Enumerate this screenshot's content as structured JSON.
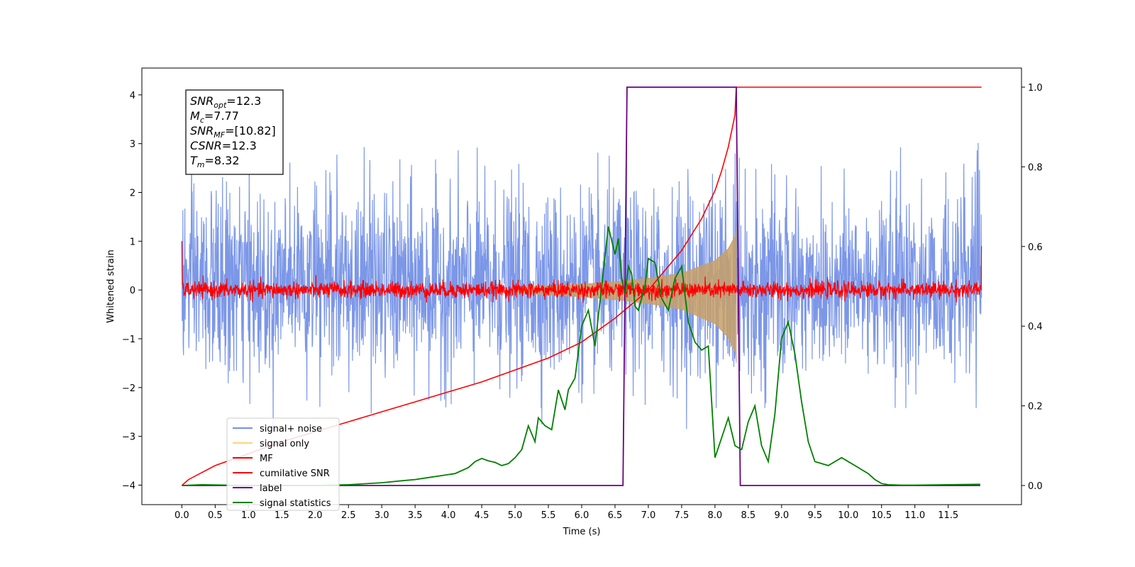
{
  "chart_data": {
    "type": "line",
    "xlabel": "Time (s)",
    "ylabel": "Whitened strain",
    "xlim": [
      -0.6,
      12.6
    ],
    "ylim": [
      -4.4,
      4.55
    ],
    "y2lim": [
      -0.048,
      1.048
    ],
    "x_ticks": [
      0.0,
      0.5,
      1.0,
      1.5,
      2.0,
      2.5,
      3.0,
      3.5,
      4.0,
      4.5,
      5.0,
      5.5,
      6.0,
      6.5,
      7.0,
      7.5,
      8.0,
      8.5,
      9.0,
      9.5,
      10.0,
      10.5,
      11.0,
      11.5
    ],
    "x_tick_labels": [
      "0.0",
      "0.5",
      "1.0",
      "1.5",
      "2.0",
      "2.5",
      "3.0",
      "3.5",
      "4.0",
      "4.5",
      "5.0",
      "5.5",
      "6.0",
      "6.5",
      "7.0",
      "7.5",
      "8.0",
      "8.5",
      "9.0",
      "9.5",
      "10.0",
      "10.5",
      "11.0",
      "11.5"
    ],
    "y_ticks": [
      -4,
      -3,
      -2,
      -1,
      0,
      1,
      2,
      3,
      4
    ],
    "y_tick_labels": [
      "−4",
      "−3",
      "−2",
      "−1",
      "0",
      "1",
      "2",
      "3",
      "4"
    ],
    "y2_ticks": [
      0.0,
      0.2,
      0.4,
      0.6,
      0.8,
      1.0
    ],
    "y2_tick_labels": [
      "0.0",
      "0.2",
      "0.4",
      "0.6",
      "0.8",
      "1.0"
    ],
    "annotation": {
      "lines": [
        {
          "main": "SNR",
          "sub": "opt",
          "rest": "=12.3"
        },
        {
          "main": "M",
          "sub": "c",
          "rest": "=7.77"
        },
        {
          "main": "SNR",
          "sub": "MF",
          "rest": "=[10.82]"
        },
        {
          "main": "CSNR",
          "sub": "",
          "rest": "=12.3"
        },
        {
          "main": "T",
          "sub": "m",
          "rest": "=8.32"
        }
      ]
    },
    "legend": {
      "placement": "lower-left",
      "entries": [
        {
          "label": "signal+ noise",
          "color": "#7591e6"
        },
        {
          "label": "signal only",
          "color": "#ffd37a"
        },
        {
          "label": "MF",
          "color": "#ff0000"
        },
        {
          "label": "cumilative SNR",
          "color": "#ff0000"
        },
        {
          "label": "label",
          "color": "#6a0080"
        },
        {
          "label": "signal statistics",
          "color": "#008000"
        }
      ]
    },
    "series": [
      {
        "name": "signal+ noise",
        "axis": "left",
        "color": "#7591e6",
        "kind": "noise",
        "t_start": 0.0,
        "t_end": 12.0,
        "n": 2400,
        "envelope": {
          "upper": [
            1.7,
            3.3
          ],
          "lower": [
            -1.6,
            -2.9
          ]
        }
      },
      {
        "name": "signal only",
        "axis": "left",
        "color": "#c8a066",
        "kind": "chirp_envelope",
        "t": [
          5.0,
          6.0,
          6.5,
          7.0,
          7.5,
          8.0,
          8.2,
          8.3,
          8.32
        ],
        "amp": [
          0.05,
          0.12,
          0.17,
          0.24,
          0.34,
          0.6,
          0.85,
          1.1,
          1.3
        ]
      },
      {
        "name": "MF",
        "axis": "left",
        "color": "#ff0000",
        "kind": "noise_small",
        "t_start": 0.0,
        "t_end": 12.0,
        "n": 2400,
        "amp": 0.12,
        "edges": [
          1.0,
          0.9
        ]
      },
      {
        "name": "cumilative SNR",
        "axis": "right",
        "x": [
          0.0,
          0.1,
          0.5,
          1.0,
          1.5,
          2.0,
          2.5,
          3.0,
          3.5,
          4.0,
          4.5,
          5.0,
          5.5,
          6.0,
          6.5,
          7.0,
          7.5,
          7.8,
          8.0,
          8.1,
          8.2,
          8.3,
          8.32,
          12.0
        ],
        "y": [
          0.0,
          0.015,
          0.05,
          0.08,
          0.11,
          0.135,
          0.16,
          0.185,
          0.21,
          0.235,
          0.26,
          0.29,
          0.32,
          0.36,
          0.42,
          0.49,
          0.59,
          0.67,
          0.74,
          0.79,
          0.85,
          0.93,
          1.0,
          1.0
        ]
      },
      {
        "name": "label",
        "axis": "right",
        "x": [
          0.0,
          6.62,
          6.68,
          8.32,
          8.38,
          11.98
        ],
        "y": [
          0.0,
          0.0,
          1.0,
          1.0,
          0.0,
          0.0
        ]
      },
      {
        "name": "signal statistics",
        "axis": "right",
        "x": [
          0.0,
          0.3,
          1.0,
          2.0,
          2.5,
          3.0,
          3.3,
          3.5,
          3.7,
          3.9,
          4.1,
          4.3,
          4.4,
          4.5,
          4.6,
          4.7,
          4.8,
          4.9,
          5.0,
          5.1,
          5.2,
          5.3,
          5.35,
          5.45,
          5.55,
          5.65,
          5.75,
          5.8,
          5.9,
          6.0,
          6.1,
          6.2,
          6.3,
          6.4,
          6.5,
          6.55,
          6.6,
          6.65,
          6.7,
          6.75,
          6.8,
          6.85,
          6.9,
          6.95,
          7.0,
          7.1,
          7.2,
          7.3,
          7.4,
          7.5,
          7.6,
          7.7,
          7.8,
          7.9,
          8.0,
          8.1,
          8.2,
          8.3,
          8.4,
          8.5,
          8.6,
          8.7,
          8.8,
          8.9,
          9.0,
          9.1,
          9.2,
          9.3,
          9.4,
          9.5,
          9.7,
          9.9,
          10.0,
          10.1,
          10.2,
          10.3,
          10.4,
          10.5,
          10.6,
          10.8,
          11.0,
          11.5,
          11.98
        ],
        "y": [
          0.0,
          0.002,
          0.0,
          0.0,
          0.002,
          0.007,
          0.012,
          0.015,
          0.02,
          0.025,
          0.03,
          0.045,
          0.06,
          0.068,
          0.062,
          0.058,
          0.05,
          0.055,
          0.07,
          0.09,
          0.15,
          0.11,
          0.17,
          0.15,
          0.14,
          0.24,
          0.19,
          0.24,
          0.27,
          0.4,
          0.44,
          0.35,
          0.5,
          0.65,
          0.58,
          0.62,
          0.52,
          0.48,
          0.55,
          0.53,
          0.45,
          0.44,
          0.47,
          0.5,
          0.57,
          0.56,
          0.47,
          0.44,
          0.52,
          0.55,
          0.41,
          0.36,
          0.34,
          0.35,
          0.07,
          0.12,
          0.17,
          0.1,
          0.09,
          0.16,
          0.2,
          0.1,
          0.06,
          0.18,
          0.37,
          0.41,
          0.33,
          0.21,
          0.11,
          0.06,
          0.05,
          0.07,
          0.06,
          0.05,
          0.04,
          0.03,
          0.015,
          0.005,
          0.002,
          0.001,
          0.001,
          0.002,
          0.003
        ]
      }
    ]
  }
}
